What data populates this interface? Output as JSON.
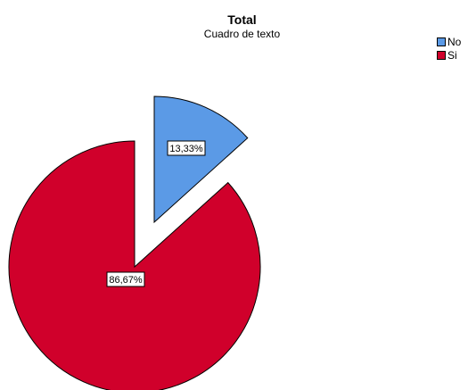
{
  "chart_data": {
    "type": "pie",
    "title": "Total",
    "subtitle": "Cuadro de texto",
    "categories": [
      "No",
      "Si"
    ],
    "values": [
      13.33,
      86.67
    ],
    "labels": [
      "13,33%",
      "86,67%"
    ],
    "colors": [
      "#5b9ae6",
      "#d0002b"
    ],
    "exploded": [
      "No",
      "Si"
    ],
    "legend_position": "top-right"
  }
}
